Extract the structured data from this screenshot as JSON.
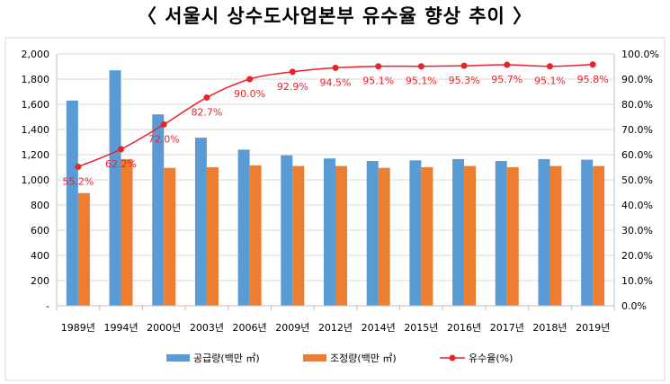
{
  "title": "〈 서울시 상수도사업본부 유수율 향상 추이 〉",
  "chart_data": {
    "type": "bar",
    "categories": [
      "1989년",
      "1994년",
      "2000년",
      "2003년",
      "2006년",
      "2009년",
      "2012년",
      "2014년",
      "2015년",
      "2016년",
      "2017년",
      "2018년",
      "2019년"
    ],
    "series": [
      {
        "name": "공급량(백만 ㎥)",
        "type": "bar",
        "axis": "left",
        "color": "#5b9bd5",
        "values": [
          1630,
          1870,
          1520,
          1335,
          1240,
          1195,
          1170,
          1150,
          1155,
          1165,
          1150,
          1165,
          1160
        ]
      },
      {
        "name": "조정량(백만 ㎥)",
        "type": "bar",
        "axis": "left",
        "color": "#ed7d31",
        "values": [
          895,
          1165,
          1095,
          1100,
          1115,
          1110,
          1110,
          1095,
          1100,
          1110,
          1100,
          1110,
          1110
        ]
      },
      {
        "name": "유수율(%)",
        "type": "line",
        "axis": "right",
        "color": "#e8232a",
        "values": [
          55.2,
          62.2,
          72.0,
          82.7,
          90.0,
          92.9,
          94.5,
          95.1,
          95.1,
          95.3,
          95.7,
          95.1,
          95.8
        ],
        "labels": [
          "55.2%",
          "62.2%",
          "72.0%",
          "82.7%",
          "90.0%",
          "92.9%",
          "94.5%",
          "95.1%",
          "95.1%",
          "95.3%",
          "95.7%",
          "95.1%",
          "95.8%"
        ]
      }
    ],
    "y_left": {
      "ylim": [
        0,
        2000
      ],
      "step": 200,
      "tick_labels": [
        "-",
        "200",
        "400",
        "600",
        "800",
        "1,000",
        "1,200",
        "1,400",
        "1,600",
        "1,800",
        "2,000"
      ]
    },
    "y_right": {
      "ylim": [
        0,
        100
      ],
      "step": 10,
      "tick_labels": [
        "0.0%",
        "10.0%",
        "20.0%",
        "30.0%",
        "40.0%",
        "50.0%",
        "60.0%",
        "70.0%",
        "80.0%",
        "90.0%",
        "100.0%"
      ]
    },
    "grid": true,
    "legend": "bottom"
  }
}
